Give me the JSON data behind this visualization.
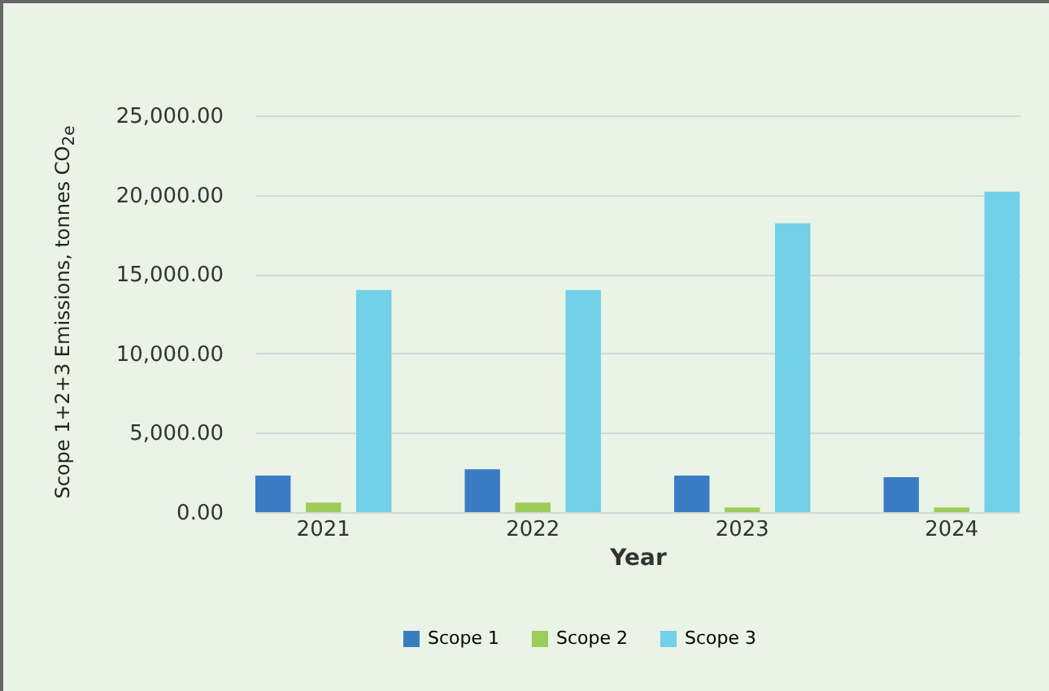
{
  "chart_data": {
    "type": "bar",
    "xlabel": "Year",
    "ylabel": "Scope 1+2+3 Emissions, tonnes CO$_{2e}$",
    "categories": [
      "2021",
      "2022",
      "2023",
      "2024"
    ],
    "series": [
      {
        "name": "Scope 1",
        "color": "#3a7cc3",
        "values": [
          2300,
          2700,
          2300,
          2200
        ]
      },
      {
        "name": "Scope 2",
        "color": "#9ccc5a",
        "values": [
          600,
          600,
          300,
          300
        ]
      },
      {
        "name": "Scope 3",
        "color": "#72d0e8",
        "values": [
          14000,
          14000,
          18200,
          20200
        ]
      }
    ],
    "ylim": [
      0,
      25000
    ],
    "yticks": [
      {
        "value": 0,
        "label": "0.00"
      },
      {
        "value": 5000,
        "label": "5,000.00"
      },
      {
        "value": 10000,
        "label": "10,000.00"
      },
      {
        "value": 15000,
        "label": "15,000.00"
      },
      {
        "value": 20000,
        "label": "20,000.00"
      },
      {
        "value": 25000,
        "label": "25,000.00"
      }
    ],
    "grid": "y",
    "legend": "bottom"
  }
}
